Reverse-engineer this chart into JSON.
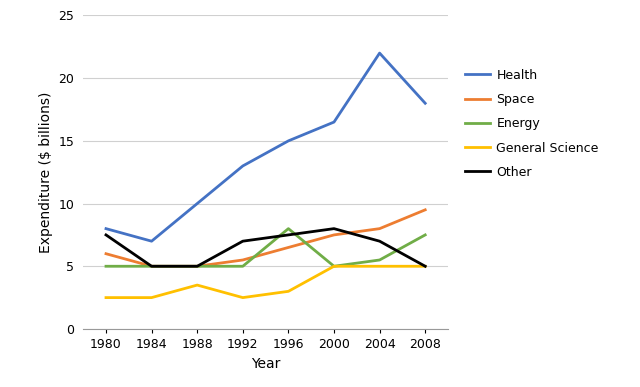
{
  "years": [
    1980,
    1984,
    1988,
    1992,
    1996,
    2000,
    2004,
    2008
  ],
  "series": {
    "Health": {
      "values": [
        8.0,
        7.0,
        10.0,
        13.0,
        15.0,
        16.5,
        22.0,
        18.0
      ],
      "color": "#4472C4"
    },
    "Space": {
      "values": [
        6.0,
        5.0,
        5.0,
        5.5,
        6.5,
        7.5,
        8.0,
        9.5
      ],
      "color": "#ED7D31"
    },
    "Energy": {
      "values": [
        5.0,
        5.0,
        5.0,
        5.0,
        8.0,
        5.0,
        5.5,
        7.5
      ],
      "color": "#70AD47"
    },
    "General Science": {
      "values": [
        2.5,
        2.5,
        3.5,
        2.5,
        3.0,
        5.0,
        5.0,
        5.0
      ],
      "color": "#FFC000"
    },
    "Other": {
      "values": [
        7.5,
        5.0,
        5.0,
        7.0,
        7.5,
        8.0,
        7.0,
        5.0
      ],
      "color": "#000000"
    }
  },
  "xlabel": "Year",
  "ylabel": "Expenditure ($ billions)",
  "ylim": [
    0,
    25
  ],
  "yticks": [
    0,
    5,
    10,
    15,
    20,
    25
  ],
  "xticks": [
    1980,
    1984,
    1988,
    1992,
    1996,
    2000,
    2004,
    2008
  ],
  "xlim_left": 1978,
  "xlim_right": 2010,
  "legend_order": [
    "Health",
    "Space",
    "Energy",
    "General Science",
    "Other"
  ],
  "background_color": "#ffffff",
  "grid_color": "#d0d0d0",
  "linewidth": 2.0,
  "title_fontsize": 10,
  "label_fontsize": 10,
  "tick_fontsize": 9,
  "legend_fontsize": 9
}
